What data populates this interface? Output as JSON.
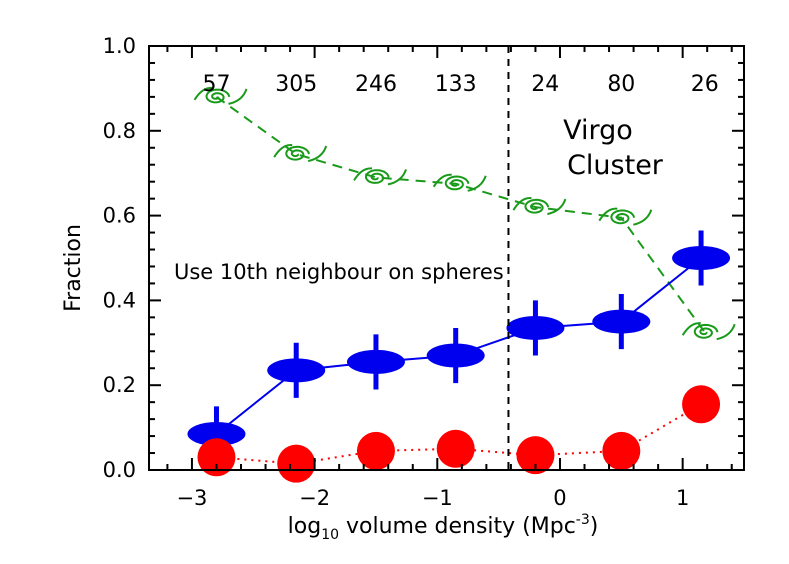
{
  "chart_data": {
    "type": "scatter",
    "xlabel_main": "log",
    "xlabel_sub": "10",
    "xlabel_rest": " volume density (Mpc",
    "xlabel_sup": "-3",
    "xlabel_close": ")",
    "ylabel": "Fraction",
    "xlim": [
      -3.35,
      1.5
    ],
    "ylim": [
      0.0,
      1.0
    ],
    "x_ticks": [
      -3,
      -2,
      -1,
      0,
      1
    ],
    "x_tick_labels": [
      "−3",
      "−2",
      "−1",
      "0",
      "1"
    ],
    "y_ticks": [
      0.0,
      0.2,
      0.4,
      0.6,
      0.8,
      1.0
    ],
    "y_tick_labels": [
      "0.0",
      "0.2",
      "0.4",
      "0.6",
      "0.8",
      "1.0"
    ],
    "grid": false,
    "annotations": {
      "method": "Use 10th neighbour on spheres",
      "cluster_line1": "Virgo",
      "cluster_line2": "Cluster",
      "cluster_boundary_x": -0.42
    },
    "counts": [
      {
        "x": -2.8,
        "label": "57"
      },
      {
        "x": -2.15,
        "label": "305"
      },
      {
        "x": -1.5,
        "label": "246"
      },
      {
        "x": -0.85,
        "label": "133"
      },
      {
        "x": -0.12,
        "label": "24"
      },
      {
        "x": 0.5,
        "label": "80"
      },
      {
        "x": 1.18,
        "label": "26"
      }
    ],
    "series": [
      {
        "marker": "spiral",
        "color": "#1a9a1a",
        "line_style": "dashed",
        "x": [
          -2.8,
          -2.15,
          -1.5,
          -0.85,
          -0.2,
          0.5,
          1.18
        ],
        "y": [
          0.88,
          0.745,
          0.69,
          0.675,
          0.62,
          0.595,
          0.325
        ]
      },
      {
        "marker": "ellipse",
        "color": "#0000ee",
        "line_style": "solid",
        "x": [
          -2.8,
          -2.15,
          -1.5,
          -0.85,
          -0.2,
          0.5,
          1.15
        ],
        "y": [
          0.085,
          0.235,
          0.255,
          0.27,
          0.335,
          0.35,
          0.5
        ],
        "err": [
          0.065,
          0.065,
          0.065,
          0.065,
          0.065,
          0.065,
          0.065
        ]
      },
      {
        "marker": "circle",
        "color": "#ff0000",
        "line_style": "dotted",
        "x": [
          -2.8,
          -2.15,
          -1.5,
          -0.85,
          -0.2,
          0.5,
          1.15
        ],
        "y": [
          0.03,
          0.015,
          0.045,
          0.05,
          0.035,
          0.045,
          0.155
        ]
      }
    ]
  }
}
